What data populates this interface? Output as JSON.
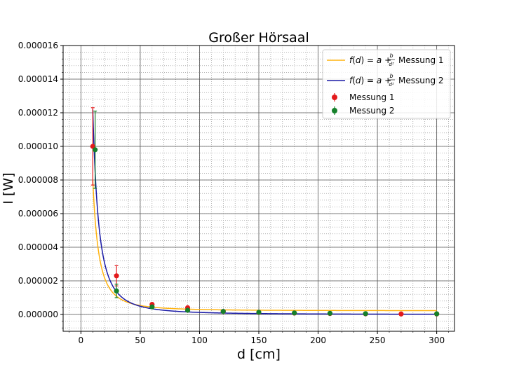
{
  "chart_data": {
    "type": "scatter",
    "title": "Großer Hörsaal",
    "xlabel": "d [cm]",
    "ylabel": "I [W]",
    "xlim": [
      -15,
      315
    ],
    "ylim": [
      -1e-06,
      1.6e-05
    ],
    "x_ticks": [
      0,
      50,
      100,
      150,
      200,
      250,
      300
    ],
    "x_tick_labels": [
      "0",
      "50",
      "100",
      "150",
      "200",
      "250",
      "300"
    ],
    "y_ticks": [
      0,
      2e-06,
      4e-06,
      6e-06,
      8e-06,
      1e-05,
      1.2e-05,
      1.4e-05,
      1.6e-05
    ],
    "y_tick_labels": [
      "0.000000",
      "0.000002",
      "0.000004",
      "0.000006",
      "0.000008",
      "0.000010",
      "0.000012",
      "0.000014",
      "0.000016"
    ],
    "grid": true,
    "minor_grid": true,
    "legend_position": "top-right",
    "fits": [
      {
        "name": "f(d) = a + b/d² Messung 1",
        "color": "#ffb30f",
        "a": 2.2e-07,
        "b": 0.00078,
        "x_range": [
          10,
          300
        ]
      },
      {
        "name": "f(d) = a + b/d² Messung 2",
        "color": "#1a1aa6",
        "a": 0.0,
        "b": 0.00122,
        "x_range": [
          10,
          300
        ]
      }
    ],
    "series": [
      {
        "name": "Messung 1",
        "color": "#e31a1c",
        "x": [
          10,
          30,
          60,
          90,
          120,
          150,
          180,
          210,
          240,
          270,
          300
        ],
        "y": [
          1e-05,
          2.3e-06,
          6e-07,
          4e-07,
          1.8e-07,
          1.2e-07,
          8e-08,
          6e-08,
          4e-08,
          3e-08,
          3e-08
        ],
        "yerr": [
          2.3e-06,
          6e-07,
          5e-08,
          3e-08,
          2e-08,
          1e-08,
          1e-08,
          1e-08,
          1e-08,
          1e-08,
          1e-08
        ]
      },
      {
        "name": "Messung 2",
        "color": "#15802a",
        "x": [
          12,
          30,
          60,
          90,
          120,
          150,
          180,
          210,
          240,
          300
        ],
        "y": [
          9.8e-06,
          1.4e-06,
          4.5e-07,
          2.5e-07,
          1.8e-07,
          1.3e-07,
          9e-08,
          7e-08,
          5e-08,
          4e-08
        ],
        "yerr": [
          2.3e-06,
          4e-07,
          5e-08,
          3e-08,
          2e-08,
          1e-08,
          1e-08,
          1e-08,
          1e-08,
          1e-08
        ]
      }
    ]
  },
  "legend": {
    "fit1_name": "Messung 1",
    "fit2_name": "Messung 2",
    "series1_label": "Messung 1",
    "series2_label": "Messung 2"
  }
}
